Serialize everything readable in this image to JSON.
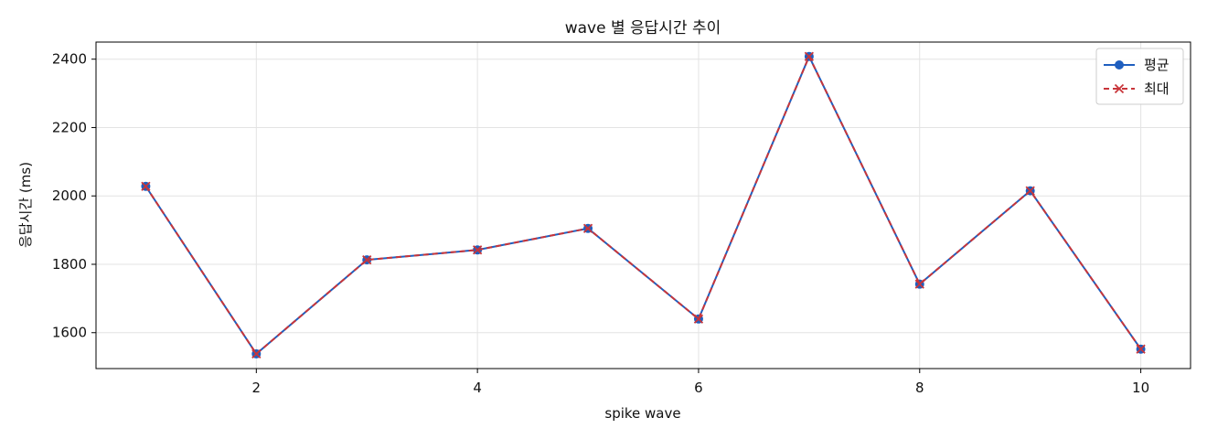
{
  "chart_data": {
    "type": "line",
    "title": "wave 별 응답시간 추이",
    "xlabel": "spike wave",
    "ylabel": "응답시간 (ms)",
    "xlim": [
      0.55,
      10.45
    ],
    "ylim": [
      1495,
      2450
    ],
    "xticks": [
      2,
      4,
      6,
      8,
      10
    ],
    "yticks": [
      1600,
      1800,
      2000,
      2200,
      2400
    ],
    "grid": true,
    "legend_position": "top-right",
    "x": [
      1,
      2,
      3,
      4,
      5,
      6,
      7,
      8,
      9,
      10
    ],
    "series": [
      {
        "name": "평균",
        "color": "#1f5fbf",
        "line_style": "solid",
        "marker": "circle",
        "values": [
          2028,
          1538,
          1813,
          1842,
          1905,
          1640,
          2408,
          1742,
          2015,
          1552
        ]
      },
      {
        "name": "최대",
        "color": "#c8353a",
        "line_style": "dashed",
        "marker": "x",
        "values": [
          2028,
          1538,
          1813,
          1842,
          1905,
          1640,
          2408,
          1742,
          2015,
          1552
        ]
      }
    ]
  }
}
